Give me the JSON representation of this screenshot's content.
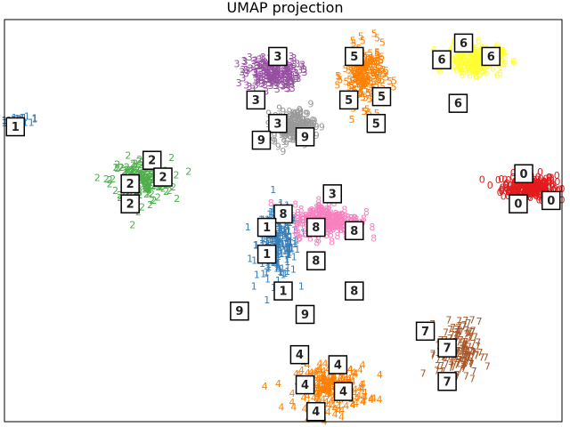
{
  "chart_data": {
    "type": "scatter",
    "title": "UMAP projection",
    "xlabel": "",
    "ylabel": "",
    "axis_ticks_visible": false,
    "grid": false,
    "legend": "none",
    "clusters": [
      {
        "label": "0",
        "color": "#e41a1c",
        "center": [
          9.6,
          7.0
        ],
        "spread": [
          0.45,
          0.35
        ],
        "points": 260
      },
      {
        "label": "1",
        "color": "#377eb8",
        "center": [
          5.0,
          5.3
        ],
        "spread": [
          0.35,
          0.9
        ],
        "points": 220
      },
      {
        "label": "1",
        "color": "#377eb8",
        "center": [
          0.3,
          9.0
        ],
        "spread": [
          0.35,
          0.08
        ],
        "points": 25
      },
      {
        "label": "2",
        "color": "#4daf4a",
        "center": [
          2.5,
          7.2
        ],
        "spread": [
          0.5,
          0.6
        ],
        "points": 180
      },
      {
        "label": "3",
        "color": "#984ea3",
        "center": [
          4.9,
          10.4
        ],
        "spread": [
          0.45,
          0.45
        ],
        "points": 200
      },
      {
        "label": "4",
        "color": "#ff7f00",
        "center": [
          6.0,
          1.0
        ],
        "spread": [
          0.6,
          0.6
        ],
        "points": 220
      },
      {
        "label": "5",
        "color": "#ff7f00",
        "center": [
          6.6,
          10.3
        ],
        "spread": [
          0.35,
          0.8
        ],
        "points": 200
      },
      {
        "label": "6",
        "color": "#ffff33",
        "center": [
          8.6,
          10.8
        ],
        "spread": [
          0.45,
          0.4
        ],
        "points": 200
      },
      {
        "label": "7",
        "color": "#a65628",
        "center": [
          8.3,
          2.1
        ],
        "spread": [
          0.35,
          0.8
        ],
        "points": 160
      },
      {
        "label": "8",
        "color": "#f781bf",
        "center": [
          5.9,
          6.0
        ],
        "spread": [
          0.55,
          0.45
        ],
        "points": 220
      },
      {
        "label": "9",
        "color": "#999999",
        "center": [
          5.3,
          8.8
        ],
        "spread": [
          0.35,
          0.45
        ],
        "points": 170
      }
    ],
    "digit_labels": [
      {
        "digit": "1",
        "x": 0.2,
        "y": 8.8
      },
      {
        "digit": "2",
        "x": 2.7,
        "y": 7.8
      },
      {
        "digit": "2",
        "x": 2.3,
        "y": 7.1
      },
      {
        "digit": "2",
        "x": 2.9,
        "y": 7.3
      },
      {
        "digit": "2",
        "x": 2.3,
        "y": 6.5
      },
      {
        "digit": "3",
        "x": 5.0,
        "y": 10.9
      },
      {
        "digit": "3",
        "x": 4.6,
        "y": 9.6
      },
      {
        "digit": "3",
        "x": 5.0,
        "y": 8.9
      },
      {
        "digit": "3",
        "x": 6.0,
        "y": 6.8
      },
      {
        "digit": "5",
        "x": 6.4,
        "y": 10.9
      },
      {
        "digit": "5",
        "x": 6.3,
        "y": 9.6
      },
      {
        "digit": "5",
        "x": 6.9,
        "y": 9.7
      },
      {
        "digit": "5",
        "x": 6.8,
        "y": 8.9
      },
      {
        "digit": "6",
        "x": 8.4,
        "y": 11.3
      },
      {
        "digit": "6",
        "x": 8.0,
        "y": 10.8
      },
      {
        "digit": "6",
        "x": 8.9,
        "y": 10.9
      },
      {
        "digit": "6",
        "x": 8.3,
        "y": 9.5
      },
      {
        "digit": "9",
        "x": 4.7,
        "y": 8.4
      },
      {
        "digit": "9",
        "x": 5.5,
        "y": 8.5
      },
      {
        "digit": "9",
        "x": 4.3,
        "y": 3.3
      },
      {
        "digit": "9",
        "x": 5.5,
        "y": 3.2
      },
      {
        "digit": "0",
        "x": 9.5,
        "y": 7.4
      },
      {
        "digit": "0",
        "x": 9.4,
        "y": 6.5
      },
      {
        "digit": "0",
        "x": 10.0,
        "y": 6.6
      },
      {
        "digit": "8",
        "x": 5.1,
        "y": 6.2
      },
      {
        "digit": "8",
        "x": 5.7,
        "y": 5.8
      },
      {
        "digit": "8",
        "x": 6.4,
        "y": 5.7
      },
      {
        "digit": "8",
        "x": 5.7,
        "y": 4.8
      },
      {
        "digit": "8",
        "x": 6.4,
        "y": 3.9
      },
      {
        "digit": "1",
        "x": 4.8,
        "y": 5.8
      },
      {
        "digit": "1",
        "x": 4.8,
        "y": 5.0
      },
      {
        "digit": "1",
        "x": 5.1,
        "y": 3.9
      },
      {
        "digit": "7",
        "x": 7.7,
        "y": 2.7
      },
      {
        "digit": "7",
        "x": 8.1,
        "y": 2.2
      },
      {
        "digit": "7",
        "x": 8.1,
        "y": 1.2
      },
      {
        "digit": "4",
        "x": 5.4,
        "y": 2.0
      },
      {
        "digit": "4",
        "x": 6.1,
        "y": 1.7
      },
      {
        "digit": "4",
        "x": 5.5,
        "y": 1.1
      },
      {
        "digit": "4",
        "x": 6.2,
        "y": 0.9
      },
      {
        "digit": "4",
        "x": 5.7,
        "y": 0.3
      }
    ],
    "xlim": [
      0,
      10.2
    ],
    "ylim": [
      0,
      12
    ]
  }
}
